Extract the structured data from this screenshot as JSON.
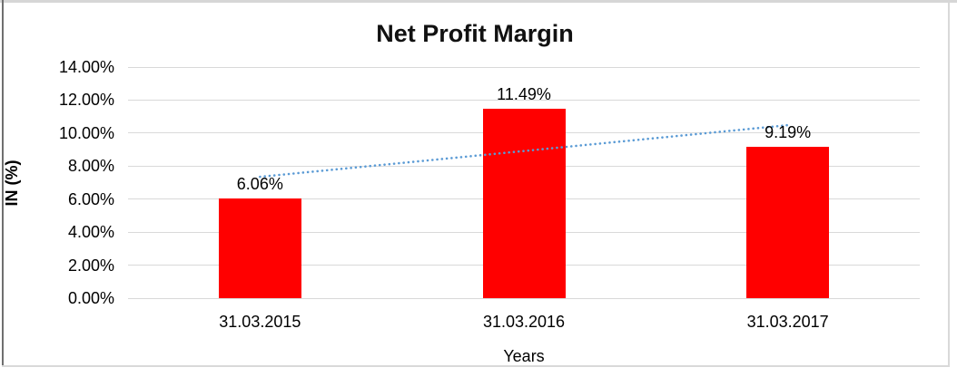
{
  "chart_data": {
    "type": "bar",
    "title": "Net Profit Margin",
    "categories": [
      "31.03.2015",
      "31.03.2016",
      "31.03.2017"
    ],
    "series": [
      {
        "name": "Net Profit Margin",
        "values": [
          6.06,
          11.49,
          9.19
        ]
      }
    ],
    "data_labels": [
      "6.06%",
      "11.49%",
      "9.19%"
    ],
    "xlabel": "Years",
    "ylabel": "IN (%)",
    "ylim": [
      0,
      14
    ],
    "ytick_step": 2,
    "yticks": [
      "0.00%",
      "2.00%",
      "4.00%",
      "6.00%",
      "8.00%",
      "10.00%",
      "12.00%",
      "14.00%"
    ],
    "grid": true,
    "legend": "none",
    "trendline": {
      "style": "dotted",
      "type": "linear",
      "start_value": 7.35,
      "end_value": 10.48
    }
  },
  "colors": {
    "background": "#FFFFFF",
    "bar": "#FF0000",
    "trendline": "#5B9BD5",
    "gridline": "#D9D9D9",
    "text": "#000000",
    "frame_top": "#D6D6D6",
    "frame_left": "#6F6F6F",
    "frame_light": "#D9D9D9"
  }
}
